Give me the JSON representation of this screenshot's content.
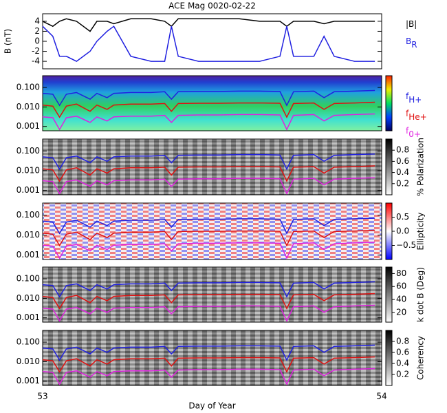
{
  "chart_data": [
    {
      "type": "line",
      "title": "ACE Mag 0020-02-22",
      "ylabel": "B (nT)",
      "legend": true,
      "x": [
        53.0,
        53.03,
        53.05,
        53.07,
        53.1,
        53.14,
        53.16,
        53.19,
        53.21,
        53.26,
        53.32,
        53.36,
        53.38,
        53.4,
        53.46,
        53.52,
        53.58,
        53.64,
        53.7,
        53.72,
        53.74,
        53.8,
        53.83,
        53.86,
        53.92,
        53.98
      ],
      "xlim": [
        53,
        54
      ],
      "ylim": [
        -5.5,
        5.5
      ],
      "yticks": [
        -4,
        -2,
        0,
        2,
        4
      ],
      "series": [
        {
          "name": "|B|",
          "color": "#000000",
          "values": [
            4,
            3,
            4,
            4.5,
            4,
            2,
            4,
            4,
            3.5,
            4.5,
            4.5,
            4,
            3,
            4.5,
            4.5,
            4.5,
            4.5,
            4,
            4,
            3,
            4,
            4,
            3.5,
            4,
            4,
            4
          ]
        },
        {
          "name": "B",
          "subscript": "R",
          "color": "#2020e0",
          "values": [
            3,
            1,
            -3,
            -3,
            -4,
            -2,
            0,
            2,
            3,
            -3,
            -4,
            -4,
            3,
            -3,
            -4,
            -4,
            -4,
            -4,
            -3,
            3,
            -3,
            -3,
            1,
            -3,
            -4,
            -4
          ]
        }
      ]
    },
    {
      "type": "spectrogram",
      "log": true,
      "legend": true,
      "background": "rainbow",
      "x": [
        53.0,
        53.03,
        53.05,
        53.07,
        53.1,
        53.14,
        53.16,
        53.19,
        53.21,
        53.26,
        53.32,
        53.36,
        53.38,
        53.4,
        53.46,
        53.52,
        53.58,
        53.64,
        53.7,
        53.72,
        53.74,
        53.8,
        53.83,
        53.86,
        53.92,
        53.98
      ],
      "xlim": [
        53,
        54
      ],
      "ylim": [
        0.0006,
        0.4
      ],
      "yticks": [
        {
          "value": 0.001,
          "label": "0.001"
        },
        {
          "value": 0.01,
          "label": "0.010"
        },
        {
          "value": 0.1,
          "label": "0.100"
        }
      ],
      "series": [
        {
          "name": "f",
          "subscript": "H+",
          "color": "#2020e0",
          "values": [
            0.05,
            0.045,
            0.012,
            0.045,
            0.055,
            0.025,
            0.05,
            0.03,
            0.05,
            0.055,
            0.055,
            0.06,
            0.025,
            0.06,
            0.062,
            0.062,
            0.065,
            0.065,
            0.062,
            0.012,
            0.06,
            0.065,
            0.03,
            0.06,
            0.065,
            0.07
          ]
        },
        {
          "name": "f",
          "subscript": "He+",
          "color": "#e01010",
          "values": [
            0.0125,
            0.011,
            0.003,
            0.011,
            0.014,
            0.006,
            0.0125,
            0.0075,
            0.0125,
            0.014,
            0.014,
            0.015,
            0.006,
            0.015,
            0.0155,
            0.0155,
            0.016,
            0.016,
            0.0155,
            0.003,
            0.015,
            0.016,
            0.0075,
            0.015,
            0.016,
            0.0175
          ]
        },
        {
          "name": "f",
          "subscript": "0+",
          "color": "#e020e0",
          "values": [
            0.0031,
            0.0028,
            0.0007,
            0.0028,
            0.0034,
            0.0016,
            0.0031,
            0.0019,
            0.0031,
            0.0034,
            0.0034,
            0.0037,
            0.0016,
            0.0037,
            0.0039,
            0.0039,
            0.0041,
            0.0041,
            0.0039,
            0.0007,
            0.0037,
            0.0041,
            0.0019,
            0.0037,
            0.0041,
            0.0044
          ]
        }
      ]
    },
    {
      "type": "spectrogram",
      "log": true,
      "background": "gray",
      "colorbar_label": "% Polarization",
      "clim": [
        0,
        1
      ],
      "cticks": [
        0.2,
        0.4,
        0.6,
        0.8
      ],
      "x": [
        53.0,
        53.03,
        53.05,
        53.07,
        53.1,
        53.14,
        53.16,
        53.19,
        53.21,
        53.26,
        53.32,
        53.36,
        53.38,
        53.4,
        53.46,
        53.52,
        53.58,
        53.64,
        53.7,
        53.72,
        53.74,
        53.8,
        53.83,
        53.86,
        53.92,
        53.98
      ],
      "xlim": [
        53,
        54
      ],
      "ylim": [
        0.0006,
        0.4
      ],
      "yticks": [
        {
          "value": 0.001,
          "label": "0.001"
        },
        {
          "value": 0.01,
          "label": "0.010"
        },
        {
          "value": 0.1,
          "label": "0.100"
        }
      ],
      "series": [
        {
          "name": "f",
          "subscript": "H+",
          "color": "#2020e0",
          "values": [
            0.05,
            0.045,
            0.012,
            0.045,
            0.055,
            0.025,
            0.05,
            0.03,
            0.05,
            0.055,
            0.055,
            0.06,
            0.025,
            0.06,
            0.062,
            0.062,
            0.065,
            0.065,
            0.062,
            0.012,
            0.06,
            0.065,
            0.03,
            0.06,
            0.065,
            0.07
          ]
        },
        {
          "name": "f",
          "subscript": "He+",
          "color": "#e01010",
          "values": [
            0.0125,
            0.011,
            0.003,
            0.011,
            0.014,
            0.006,
            0.0125,
            0.0075,
            0.0125,
            0.014,
            0.014,
            0.015,
            0.006,
            0.015,
            0.0155,
            0.0155,
            0.016,
            0.016,
            0.0155,
            0.003,
            0.015,
            0.016,
            0.0075,
            0.015,
            0.016,
            0.0175
          ]
        },
        {
          "name": "f",
          "subscript": "0+",
          "color": "#e020e0",
          "values": [
            0.0031,
            0.0028,
            0.0007,
            0.0028,
            0.0034,
            0.0016,
            0.0031,
            0.0019,
            0.0031,
            0.0034,
            0.0034,
            0.0037,
            0.0016,
            0.0037,
            0.0039,
            0.0039,
            0.0041,
            0.0041,
            0.0039,
            0.0007,
            0.0037,
            0.0041,
            0.0019,
            0.0037,
            0.0041,
            0.0044
          ]
        }
      ]
    },
    {
      "type": "spectrogram",
      "log": true,
      "background": "redblue",
      "colorbar_label": "Ellipticity",
      "clim": [
        -1,
        1
      ],
      "cticks": [
        {
          "value": -0.5,
          "label": "−0.5"
        },
        {
          "value": 0,
          "label": "0.0"
        },
        {
          "value": 0.5,
          "label": "0.5"
        }
      ],
      "x": [
        53.0,
        53.03,
        53.05,
        53.07,
        53.1,
        53.14,
        53.16,
        53.19,
        53.21,
        53.26,
        53.32,
        53.36,
        53.38,
        53.4,
        53.46,
        53.52,
        53.58,
        53.64,
        53.7,
        53.72,
        53.74,
        53.8,
        53.83,
        53.86,
        53.92,
        53.98
      ],
      "xlim": [
        53,
        54
      ],
      "ylim": [
        0.0006,
        0.4
      ],
      "yticks": [
        {
          "value": 0.001,
          "label": "0.001"
        },
        {
          "value": 0.01,
          "label": "0.010"
        },
        {
          "value": 0.1,
          "label": "0.100"
        }
      ],
      "series": [
        {
          "name": "f",
          "subscript": "H+",
          "color": "#2020e0",
          "values": [
            0.05,
            0.045,
            0.012,
            0.045,
            0.055,
            0.025,
            0.05,
            0.03,
            0.05,
            0.055,
            0.055,
            0.06,
            0.025,
            0.06,
            0.062,
            0.062,
            0.065,
            0.065,
            0.062,
            0.012,
            0.06,
            0.065,
            0.03,
            0.06,
            0.065,
            0.07
          ]
        },
        {
          "name": "f",
          "subscript": "He+",
          "color": "#e01010",
          "values": [
            0.0125,
            0.011,
            0.003,
            0.011,
            0.014,
            0.006,
            0.0125,
            0.0075,
            0.0125,
            0.014,
            0.014,
            0.015,
            0.006,
            0.015,
            0.0155,
            0.0155,
            0.016,
            0.016,
            0.0155,
            0.003,
            0.015,
            0.016,
            0.0075,
            0.015,
            0.016,
            0.0175
          ]
        },
        {
          "name": "f",
          "subscript": "0+",
          "color": "#e020e0",
          "values": [
            0.0031,
            0.0028,
            0.0007,
            0.0028,
            0.0034,
            0.0016,
            0.0031,
            0.0019,
            0.0031,
            0.0034,
            0.0034,
            0.0037,
            0.0016,
            0.0037,
            0.0039,
            0.0039,
            0.0041,
            0.0041,
            0.0039,
            0.0007,
            0.0037,
            0.0041,
            0.0019,
            0.0037,
            0.0041,
            0.0044
          ]
        }
      ]
    },
    {
      "type": "spectrogram",
      "log": true,
      "background": "gray",
      "colorbar_label": "k dot B (Deg)",
      "clim": [
        5,
        90
      ],
      "cticks": [
        20,
        40,
        60,
        80
      ],
      "x": [
        53.0,
        53.03,
        53.05,
        53.07,
        53.1,
        53.14,
        53.16,
        53.19,
        53.21,
        53.26,
        53.32,
        53.36,
        53.38,
        53.4,
        53.46,
        53.52,
        53.58,
        53.64,
        53.7,
        53.72,
        53.74,
        53.8,
        53.83,
        53.86,
        53.92,
        53.98
      ],
      "xlim": [
        53,
        54
      ],
      "ylim": [
        0.0006,
        0.4
      ],
      "yticks": [
        {
          "value": 0.001,
          "label": "0.001"
        },
        {
          "value": 0.01,
          "label": "0.010"
        },
        {
          "value": 0.1,
          "label": "0.100"
        }
      ],
      "series": [
        {
          "name": "f",
          "subscript": "H+",
          "color": "#2020e0",
          "values": [
            0.05,
            0.045,
            0.012,
            0.045,
            0.055,
            0.025,
            0.05,
            0.03,
            0.05,
            0.055,
            0.055,
            0.06,
            0.025,
            0.06,
            0.062,
            0.062,
            0.065,
            0.065,
            0.062,
            0.012,
            0.06,
            0.065,
            0.03,
            0.06,
            0.065,
            0.07
          ]
        },
        {
          "name": "f",
          "subscript": "He+",
          "color": "#e01010",
          "values": [
            0.0125,
            0.011,
            0.003,
            0.011,
            0.014,
            0.006,
            0.0125,
            0.0075,
            0.0125,
            0.014,
            0.014,
            0.015,
            0.006,
            0.015,
            0.0155,
            0.0155,
            0.016,
            0.016,
            0.0155,
            0.003,
            0.015,
            0.016,
            0.0075,
            0.015,
            0.016,
            0.0175
          ]
        },
        {
          "name": "f",
          "subscript": "0+",
          "color": "#e020e0",
          "values": [
            0.0031,
            0.0028,
            0.0007,
            0.0028,
            0.0034,
            0.0016,
            0.0031,
            0.0019,
            0.0031,
            0.0034,
            0.0034,
            0.0037,
            0.0016,
            0.0037,
            0.0039,
            0.0039,
            0.0041,
            0.0041,
            0.0039,
            0.0007,
            0.0037,
            0.0041,
            0.0019,
            0.0037,
            0.0041,
            0.0044
          ]
        }
      ]
    },
    {
      "type": "spectrogram",
      "log": true,
      "background": "gray",
      "colorbar_label": "Coherency",
      "clim": [
        0,
        1
      ],
      "cticks": [
        0.2,
        0.4,
        0.6,
        0.8
      ],
      "xlabel": "Day of Year",
      "xticks": [
        53,
        54
      ],
      "x": [
        53.0,
        53.03,
        53.05,
        53.07,
        53.1,
        53.14,
        53.16,
        53.19,
        53.21,
        53.26,
        53.32,
        53.36,
        53.38,
        53.4,
        53.46,
        53.52,
        53.58,
        53.64,
        53.7,
        53.72,
        53.74,
        53.8,
        53.83,
        53.86,
        53.92,
        53.98
      ],
      "xlim": [
        53,
        54
      ],
      "ylim": [
        0.0006,
        0.4
      ],
      "yticks": [
        {
          "value": 0.001,
          "label": "0.001"
        },
        {
          "value": 0.01,
          "label": "0.010"
        },
        {
          "value": 0.1,
          "label": "0.100"
        }
      ],
      "series": [
        {
          "name": "f",
          "subscript": "H+",
          "color": "#2020e0",
          "values": [
            0.05,
            0.045,
            0.012,
            0.045,
            0.055,
            0.025,
            0.05,
            0.03,
            0.05,
            0.055,
            0.055,
            0.06,
            0.025,
            0.06,
            0.062,
            0.062,
            0.065,
            0.065,
            0.062,
            0.012,
            0.06,
            0.065,
            0.03,
            0.06,
            0.065,
            0.07
          ]
        },
        {
          "name": "f",
          "subscript": "He+",
          "color": "#e01010",
          "values": [
            0.0125,
            0.011,
            0.003,
            0.011,
            0.014,
            0.006,
            0.0125,
            0.0075,
            0.0125,
            0.014,
            0.014,
            0.015,
            0.006,
            0.015,
            0.0155,
            0.0155,
            0.016,
            0.016,
            0.0155,
            0.003,
            0.015,
            0.016,
            0.0075,
            0.015,
            0.016,
            0.0175
          ]
        },
        {
          "name": "f",
          "subscript": "0+",
          "color": "#e020e0",
          "values": [
            0.0031,
            0.0028,
            0.0007,
            0.0028,
            0.0034,
            0.0016,
            0.0031,
            0.0019,
            0.0031,
            0.0034,
            0.0034,
            0.0037,
            0.0016,
            0.0037,
            0.0039,
            0.0039,
            0.0041,
            0.0041,
            0.0039,
            0.0007,
            0.0037,
            0.0041,
            0.0019,
            0.0037,
            0.0041,
            0.0044
          ]
        }
      ]
    }
  ]
}
